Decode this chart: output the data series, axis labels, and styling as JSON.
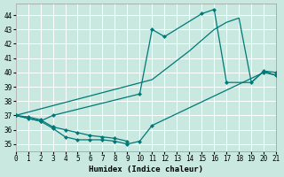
{
  "xlabel": "Humidex (Indice chaleur)",
  "xlim": [
    0,
    21
  ],
  "ylim": [
    34.5,
    44.8
  ],
  "yticks": [
    35,
    36,
    37,
    38,
    39,
    40,
    41,
    42,
    43,
    44
  ],
  "xticks": [
    0,
    1,
    2,
    3,
    4,
    5,
    6,
    7,
    8,
    9,
    10,
    11,
    12,
    13,
    14,
    15,
    16,
    17,
    18,
    19,
    20,
    21
  ],
  "bg_color": "#c8e8e0",
  "grid_color": "#ffffff",
  "line_color": "#007878",
  "line1_x": [
    0,
    1,
    2,
    3,
    4,
    5,
    6,
    7,
    8,
    9,
    10,
    11,
    20,
    21
  ],
  "line1_y": [
    37.0,
    36.8,
    36.6,
    36.1,
    35.5,
    35.3,
    35.3,
    35.3,
    35.2,
    35.0,
    35.2,
    36.3,
    40.0,
    39.8
  ],
  "line2_x": [
    0,
    1,
    2,
    3,
    4,
    5,
    6,
    7,
    8,
    9
  ],
  "line2_y": [
    37.0,
    36.9,
    36.7,
    36.2,
    36.0,
    35.8,
    35.6,
    35.5,
    35.4,
    35.2
  ],
  "line3_x": [
    0,
    2,
    3,
    10,
    11,
    12,
    15,
    16,
    17,
    19,
    20,
    21
  ],
  "line3_y": [
    37.0,
    36.6,
    37.0,
    38.5,
    43.0,
    42.5,
    44.1,
    44.4,
    39.3,
    39.3,
    40.1,
    40.0
  ],
  "line4_x": [
    0,
    11,
    14,
    16,
    17,
    18,
    19,
    20,
    21
  ],
  "line4_y": [
    37.0,
    39.5,
    41.5,
    43.0,
    43.5,
    43.8,
    39.3,
    40.1,
    39.8
  ]
}
